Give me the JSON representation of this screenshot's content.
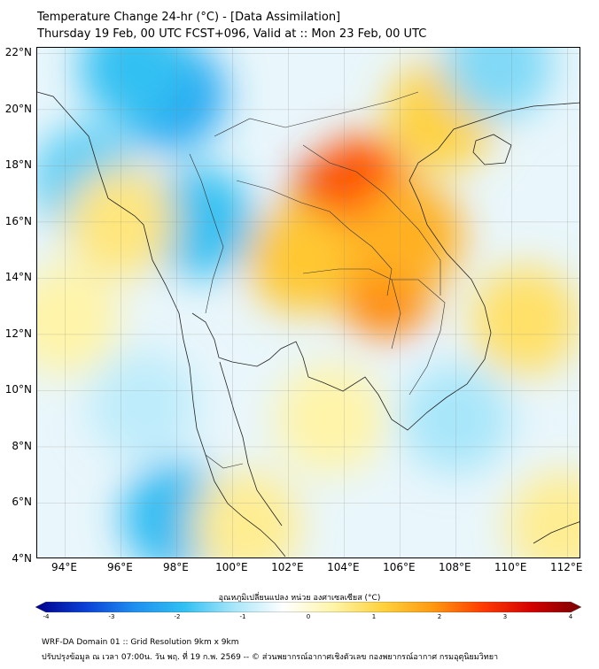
{
  "title_line1": "Temperature Change 24-hr (°C) - [Data Assimilation]",
  "title_line2": "Thursday 19 Feb, 00 UTC FCST+096, Valid at :: Mon 23 Feb, 00 UTC",
  "lat_labels": [
    "22°N",
    "20°N",
    "18°N",
    "16°N",
    "14°N",
    "12°N",
    "10°N",
    "8°N",
    "6°N",
    "4°N"
  ],
  "lat_values": [
    22,
    20,
    18,
    16,
    14,
    12,
    10,
    8,
    6,
    4
  ],
  "lon_labels": [
    "94°E",
    "96°E",
    "98°E",
    "100°E",
    "102°E",
    "104°E",
    "106°E",
    "108°E",
    "110°E",
    "112°E"
  ],
  "lon_values": [
    94,
    96,
    98,
    100,
    102,
    104,
    106,
    108,
    110,
    112
  ],
  "extent": {
    "lon": [
      93,
      112.5
    ],
    "lat": [
      4,
      22.2
    ]
  },
  "colorbar": {
    "label": "อุณหภูมิเปลี่ยนแปลง หน่วย องศาเซลเซียส (°C)",
    "ticks": [
      "-4",
      "-3",
      "-2",
      "-1",
      "0",
      "1",
      "2",
      "3",
      "4"
    ],
    "range": [
      -4,
      4
    ],
    "colors": [
      "#00008b",
      "#0a3fd6",
      "#1f8ff0",
      "#30c0f2",
      "#a8e6fa",
      "#ffffff",
      "#fff4a8",
      "#ffd23c",
      "#ff9a10",
      "#ff3c00",
      "#d40000",
      "#7a0000"
    ]
  },
  "footer_line1": "WRF-DA Domain 01 :: Grid Resolution 9km x 9km",
  "footer_line2": "ปรับปรุงข้อมูล ณ เวลา 07:00น. วัน พฤ. ที่ 19 ก.พ. 2569 -- © ส่วนพยากรณ์อากาศเชิงตัวเลข กองพยากรณ์อากาศ กรมอุตุนิยมวิทยา",
  "field_anomalies": [
    {
      "lon": 103.8,
      "lat": 16.8,
      "value": 3.4
    },
    {
      "lon": 104.6,
      "lat": 17.4,
      "value": 2.8
    },
    {
      "lon": 105.5,
      "lat": 13.5,
      "value": 2.2
    },
    {
      "lon": 106.3,
      "lat": 15.5,
      "value": 1.6
    },
    {
      "lon": 107.5,
      "lat": 19.8,
      "value": 1.0
    },
    {
      "lon": 102.5,
      "lat": 14.7,
      "value": 1.2
    },
    {
      "lon": 97.8,
      "lat": 20.5,
      "value": -1.5
    },
    {
      "lon": 96.5,
      "lat": 21.5,
      "value": -1.0
    },
    {
      "lon": 98.8,
      "lat": 16.0,
      "value": -1.0
    },
    {
      "lon": 94.8,
      "lat": 17.5,
      "value": -0.8
    },
    {
      "lon": 98.0,
      "lat": 5.5,
      "value": -1.1
    },
    {
      "lon": 109.5,
      "lat": 21.6,
      "value": -0.6
    },
    {
      "lon": 110.5,
      "lat": 12.5,
      "value": 0.8
    },
    {
      "lon": 96.0,
      "lat": 16.0,
      "value": 0.7
    },
    {
      "lon": 103.5,
      "lat": 9.0,
      "value": 0.5
    },
    {
      "lon": 111.8,
      "lat": 5.2,
      "value": 0.6
    },
    {
      "lon": 94.0,
      "lat": 12.5,
      "value": 0.5
    },
    {
      "lon": 100.5,
      "lat": 5.2,
      "value": 0.6
    },
    {
      "lon": 108.0,
      "lat": 9.0,
      "value": -0.4
    },
    {
      "lon": 96.8,
      "lat": 9.5,
      "value": -0.3
    }
  ]
}
